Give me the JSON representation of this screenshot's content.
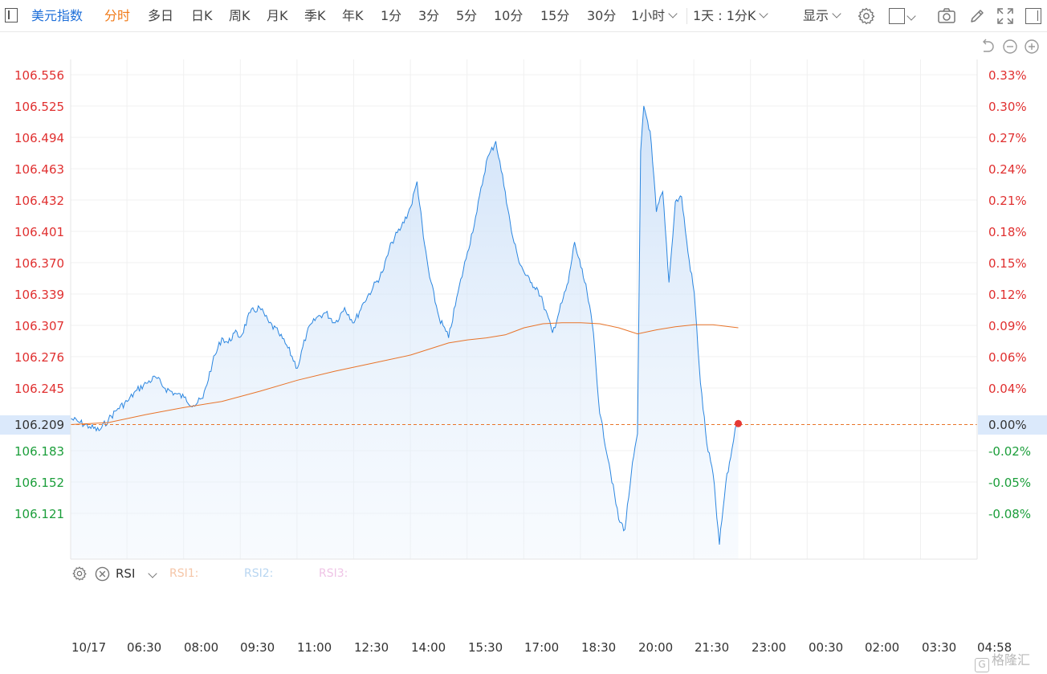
{
  "toolbar": {
    "title": "美元指数",
    "tabs": [
      "分时",
      "多日",
      "日K",
      "周K",
      "月K",
      "季K",
      "年K",
      "1分",
      "3分",
      "5分",
      "10分",
      "15分",
      "30分"
    ],
    "interval_select": "1小时",
    "range_select": "1天 : 1分K",
    "display_select": "显示"
  },
  "colors": {
    "accent": "#1e6fd9",
    "active_tab": "#f07a18",
    "up": "#e03030",
    "down": "#1b9e3a",
    "price_line": "#2b86e0",
    "avg_line": "#e8742a"
  },
  "icons": [
    "settings-icon",
    "square-icon",
    "camera-icon",
    "pencil-icon",
    "fullscreen-icon",
    "panel-icon",
    "undo-icon",
    "zoom-out-icon",
    "zoom-in-icon"
  ],
  "chart_data": {
    "type": "area",
    "title": "",
    "base_price": 106.209,
    "current_price": "106.209",
    "current_change": "0.00%",
    "y_left_ticks": [
      "106.556",
      "106.525",
      "106.494",
      "106.463",
      "106.432",
      "106.401",
      "106.370",
      "106.339",
      "106.307",
      "106.276",
      "106.245",
      "106.183",
      "106.152",
      "106.121"
    ],
    "y_right_ticks": [
      "0.33%",
      "0.30%",
      "0.27%",
      "0.24%",
      "0.21%",
      "0.18%",
      "0.15%",
      "0.12%",
      "0.09%",
      "0.06%",
      "0.04%",
      "-0.02%",
      "-0.05%",
      "-0.08%"
    ],
    "x_ticks": [
      "10/17",
      "06:30",
      "08:00",
      "09:30",
      "11:00",
      "12:30",
      "14:00",
      "15:30",
      "17:00",
      "18:30",
      "20:00",
      "21:30",
      "23:00",
      "00:30",
      "02:00",
      "03:30",
      "04:58"
    ],
    "ylim": [
      106.09,
      106.585
    ],
    "series": [
      {
        "name": "price",
        "x": [
          "05:00",
          "05:15",
          "05:30",
          "05:45",
          "06:00",
          "06:15",
          "06:30",
          "06:45",
          "07:00",
          "07:15",
          "07:30",
          "07:45",
          "08:00",
          "08:15",
          "08:30",
          "08:45",
          "09:00",
          "09:10",
          "09:20",
          "09:30",
          "09:45",
          "10:00",
          "10:15",
          "10:30",
          "10:45",
          "11:00",
          "11:15",
          "11:30",
          "11:45",
          "12:00",
          "12:15",
          "12:30",
          "12:45",
          "13:00",
          "13:15",
          "13:30",
          "13:45",
          "14:00",
          "14:10",
          "14:20",
          "14:30",
          "14:45",
          "15:00",
          "15:15",
          "15:30",
          "15:45",
          "16:00",
          "16:15",
          "16:30",
          "16:40",
          "16:50",
          "17:00",
          "17:10",
          "17:20",
          "17:30",
          "17:45",
          "18:00",
          "18:10",
          "18:20",
          "18:30",
          "18:40",
          "18:50",
          "19:00",
          "19:15",
          "19:30",
          "19:40",
          "19:50",
          "20:00",
          "20:05",
          "20:10",
          "20:20",
          "20:30",
          "20:40",
          "20:50",
          "21:00",
          "21:10",
          "21:20",
          "21:30",
          "21:40",
          "21:50",
          "22:00",
          "22:10",
          "22:20",
          "22:30",
          "22:35",
          "22:40"
        ],
        "values": [
          106.215,
          106.211,
          106.207,
          106.203,
          106.214,
          106.225,
          106.232,
          106.243,
          106.25,
          106.256,
          106.245,
          106.24,
          106.236,
          106.228,
          106.235,
          106.27,
          106.295,
          106.29,
          106.3,
          106.296,
          106.32,
          106.325,
          106.31,
          106.3,
          106.285,
          106.265,
          106.3,
          106.315,
          106.32,
          106.31,
          106.325,
          106.31,
          106.33,
          106.345,
          106.36,
          106.39,
          106.405,
          106.425,
          106.45,
          106.395,
          106.355,
          106.315,
          106.295,
          106.34,
          106.38,
          106.42,
          106.47,
          106.49,
          106.44,
          106.4,
          106.375,
          106.36,
          106.35,
          106.345,
          106.33,
          106.3,
          106.33,
          106.35,
          106.39,
          106.365,
          106.34,
          106.3,
          106.22,
          106.17,
          106.115,
          106.105,
          106.16,
          106.2,
          106.48,
          106.525,
          106.5,
          106.42,
          106.44,
          106.35,
          106.43,
          106.435,
          106.38,
          106.34,
          106.25,
          106.19,
          106.16,
          106.09,
          106.15,
          106.185,
          106.205,
          106.21
        ]
      },
      {
        "name": "average",
        "x": [
          "05:00",
          "06:00",
          "07:00",
          "08:00",
          "09:00",
          "10:00",
          "11:00",
          "12:00",
          "13:00",
          "14:00",
          "15:00",
          "15:30",
          "16:00",
          "16:30",
          "17:00",
          "17:30",
          "18:00",
          "18:30",
          "19:00",
          "19:30",
          "20:00",
          "20:30",
          "21:00",
          "21:30",
          "22:00",
          "22:40"
        ],
        "values": [
          106.209,
          106.211,
          106.219,
          106.226,
          106.232,
          106.242,
          106.253,
          106.262,
          106.27,
          106.278,
          106.29,
          106.293,
          106.295,
          106.298,
          106.305,
          106.309,
          106.31,
          106.31,
          106.309,
          106.305,
          106.299,
          106.303,
          106.306,
          106.308,
          106.308,
          106.305
        ]
      }
    ]
  },
  "rsi": {
    "label": "RSI",
    "rsi1": "RSI1:",
    "rsi2": "RSI2:",
    "rsi3": "RSI3:"
  },
  "watermark": "格隆汇"
}
